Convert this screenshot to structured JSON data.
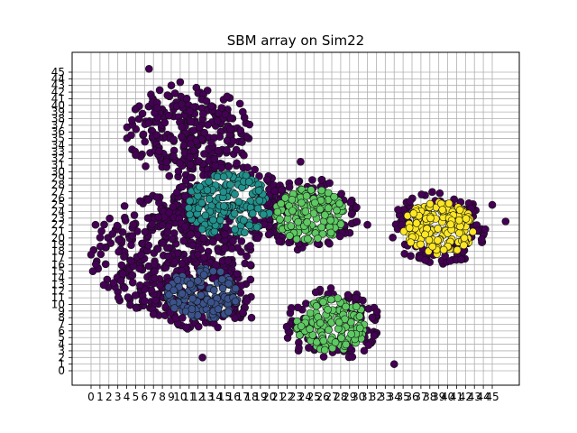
{
  "chart_data": {
    "type": "scatter",
    "title": "SBM array on Sim22",
    "xlabel": "",
    "ylabel": "",
    "xlim": [
      -0.5,
      45.5
    ],
    "ylim": [
      -0.5,
      45.5
    ],
    "xticks": [
      0,
      1,
      2,
      3,
      4,
      5,
      6,
      7,
      8,
      9,
      10,
      11,
      12,
      13,
      14,
      15,
      16,
      17,
      18,
      19,
      20,
      21,
      22,
      23,
      24,
      25,
      26,
      27,
      28,
      29,
      30,
      31,
      32,
      33,
      34,
      35,
      36,
      37,
      38,
      39,
      40,
      41,
      42,
      43,
      44,
      45
    ],
    "yticks": [
      0,
      1,
      2,
      3,
      4,
      5,
      6,
      7,
      8,
      9,
      10,
      11,
      12,
      13,
      14,
      15,
      16,
      17,
      18,
      19,
      20,
      21,
      22,
      23,
      24,
      25,
      26,
      27,
      28,
      29,
      30,
      31,
      32,
      33,
      34,
      35,
      36,
      37,
      38,
      39,
      40,
      41,
      42,
      43,
      44,
      45
    ],
    "grid": true,
    "legend": "none",
    "colormap": [
      "#440154",
      "#3b528b",
      "#21918c",
      "#5ec962",
      "#fde725"
    ],
    "clusters": [
      {
        "center": [
          9.5,
          17.5
        ],
        "radius": 8.5,
        "color_index": 0,
        "count": 260
      },
      {
        "center": [
          11.0,
          36.0
        ],
        "radius": 6.5,
        "color_index": 0,
        "count": 170
      },
      {
        "center": [
          12.5,
          11.5
        ],
        "radius": 5.0,
        "color_index": 1,
        "count": 150
      },
      {
        "center": [
          15.5,
          25.0
        ],
        "radius": 6.0,
        "color_index": 2,
        "count": 180
      },
      {
        "center": [
          24.5,
          23.5
        ],
        "radius": 5.0,
        "color_index": 3,
        "count": 150
      },
      {
        "center": [
          27.0,
          7.0
        ],
        "radius": 5.0,
        "color_index": 3,
        "count": 140
      },
      {
        "center": [
          39.0,
          21.5
        ],
        "radius": 5.0,
        "color_index": 4,
        "count": 160
      }
    ],
    "outliers": [
      [
        6.5,
        45.5
      ],
      [
        9.0,
        43.0
      ],
      [
        10.0,
        43.5
      ],
      [
        4.5,
        35.5
      ],
      [
        23.5,
        31.5
      ],
      [
        31.0,
        22.0
      ],
      [
        45.0,
        25.0
      ],
      [
        0.5,
        22.0
      ],
      [
        0.0,
        17.5
      ],
      [
        0.2,
        15.0
      ],
      [
        7.0,
        8.5
      ],
      [
        18.0,
        8.0
      ],
      [
        34.0,
        1.0
      ],
      [
        12.5,
        2.0
      ],
      [
        46.5,
        22.5
      ]
    ]
  }
}
